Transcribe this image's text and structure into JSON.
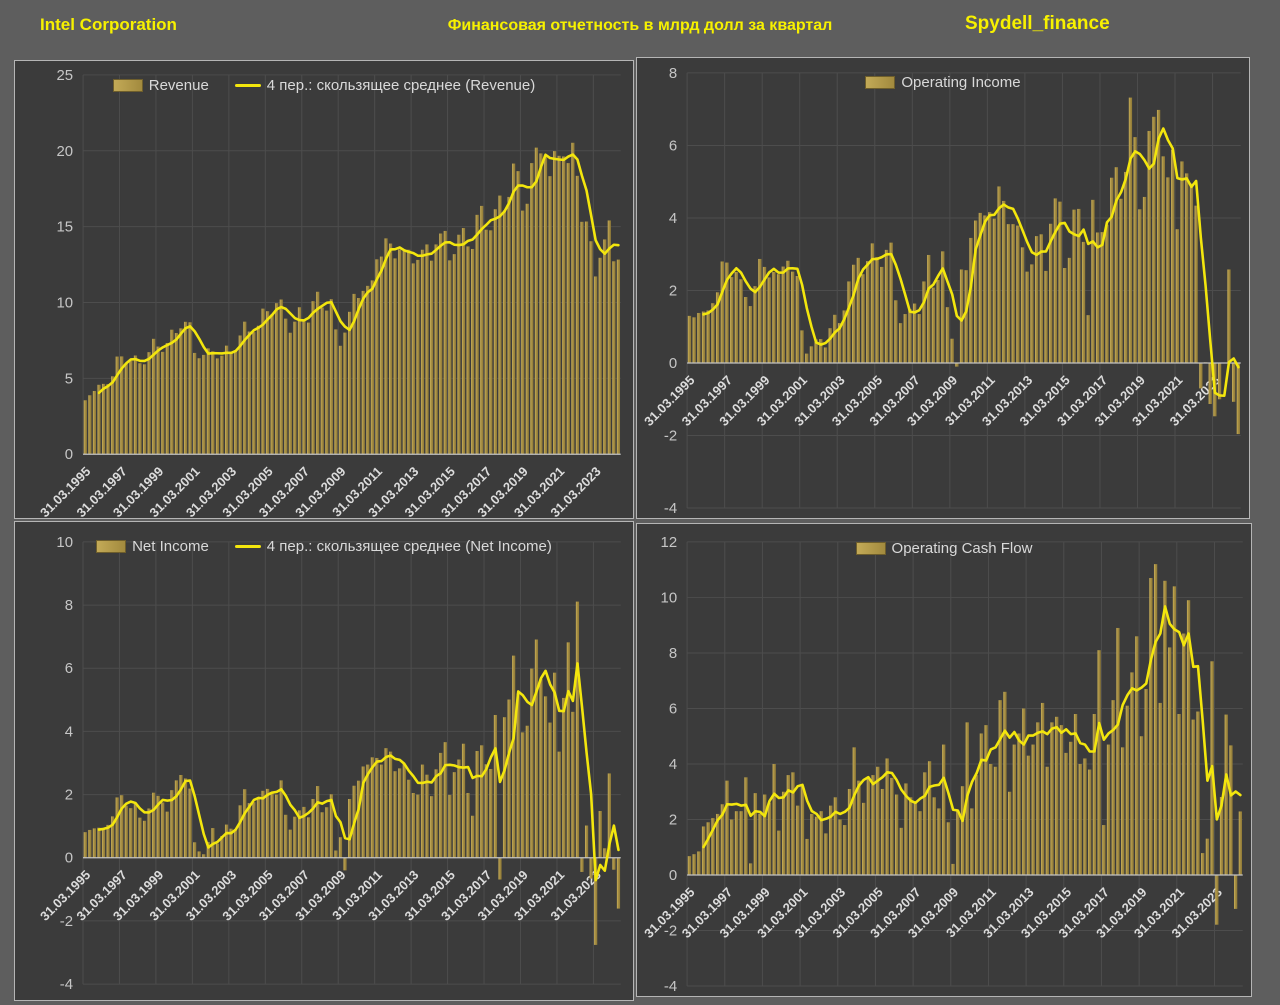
{
  "header": {
    "company": "Intel Corporation",
    "title": "Финансовая отчетность в млрд долл за квартал",
    "brand": "Spydell_finance"
  },
  "colors": {
    "page_bg": "#5e5e5e",
    "panel_bg": "#3b3b3b",
    "panel_border": "#b5b5b5",
    "grid": "#4d4d4d",
    "zero_axis": "#c4c4c4",
    "bar_fill": "#ab9245",
    "bar_highlight": "#cdb45c",
    "ma_line": "#f3e60d",
    "tick_text": "#c6c6c6",
    "xlabel_text": "#dcdcdc",
    "legend_text": "#d9d9d9",
    "header_text": "#f7f100"
  },
  "x_axis": {
    "tick_labels": [
      "31.03.1995",
      "31.03.1997",
      "31.03.1999",
      "31.03.2001",
      "31.03.2003",
      "31.03.2005",
      "31.03.2007",
      "31.03.2009",
      "31.03.2011",
      "31.03.2013",
      "31.03.2015",
      "31.03.2017",
      "31.03.2019",
      "31.03.2021",
      "31.03.2023"
    ],
    "tick_every": 8,
    "period": "quarterly",
    "first_quarter": "31.03.1995"
  },
  "chart_data": [
    {
      "type": "bar",
      "name": "revenue",
      "legend_bar": "Revenue",
      "legend_line": "4 пер.: скользящее среднее (Revenue)",
      "moving_average_period": 4,
      "ylim": [
        0,
        25
      ],
      "ytick_step": 5,
      "grid": true,
      "legend_position": "top-center",
      "values": [
        3.56,
        3.89,
        4.17,
        4.58,
        4.64,
        4.62,
        5.14,
        6.44,
        6.45,
        5.96,
        6.16,
        6.51,
        6.0,
        5.93,
        6.73,
        7.61,
        7.1,
        6.75,
        7.33,
        8.21,
        7.99,
        8.3,
        8.73,
        8.7,
        6.68,
        6.33,
        6.55,
        6.98,
        6.78,
        6.32,
        6.5,
        7.16,
        6.75,
        6.82,
        7.83,
        8.74,
        8.09,
        8.05,
        8.47,
        9.6,
        9.43,
        9.23,
        9.96,
        10.2,
        8.94,
        8.01,
        8.74,
        9.69,
        8.85,
        8.68,
        10.09,
        10.71,
        9.67,
        9.47,
        10.22,
        8.23,
        7.15,
        8.02,
        9.39,
        10.57,
        10.3,
        10.77,
        11.1,
        11.46,
        12.85,
        13.03,
        14.23,
        13.89,
        12.91,
        13.5,
        13.46,
        13.48,
        12.58,
        12.81,
        13.48,
        13.83,
        12.76,
        13.83,
        14.55,
        14.72,
        12.78,
        13.19,
        14.47,
        14.91,
        13.7,
        13.53,
        15.78,
        16.37,
        14.8,
        14.76,
        16.15,
        17.05,
        16.07,
        16.96,
        19.16,
        18.66,
        16.06,
        16.51,
        19.19,
        20.21,
        19.83,
        19.73,
        18.33,
        19.98,
        19.67,
        19.63,
        19.19,
        20.53,
        18.35,
        15.32,
        15.34,
        14.04,
        11.72,
        12.95,
        14.16,
        15.41,
        12.72,
        12.83
      ]
    },
    {
      "type": "bar",
      "name": "operating-income",
      "legend_bar": "Operating Income",
      "legend_line": null,
      "moving_average_period": 4,
      "ylim": [
        -4,
        8
      ],
      "ytick_step": 2,
      "grid": true,
      "legend_position": "top-center",
      "values": [
        1.3,
        1.26,
        1.38,
        1.42,
        1.45,
        1.65,
        1.95,
        2.8,
        2.77,
        2.37,
        2.51,
        2.31,
        1.82,
        1.57,
        2.12,
        2.87,
        2.65,
        2.36,
        2.51,
        2.45,
        2.66,
        2.82,
        2.52,
        2.4,
        0.9,
        0.26,
        0.46,
        0.65,
        0.66,
        0.43,
        0.96,
        1.33,
        1.1,
        1.45,
        2.25,
        2.71,
        2.9,
        2.45,
        2.81,
        3.3,
        2.92,
        2.65,
        3.12,
        3.32,
        1.73,
        1.1,
        1.35,
        1.49,
        1.64,
        1.35,
        2.25,
        2.98,
        2.08,
        2.29,
        3.08,
        1.54,
        0.67,
        -0.1,
        2.58,
        2.56,
        3.45,
        3.93,
        4.14,
        4.07,
        4.16,
        3.98,
        4.87,
        4.47,
        3.83,
        3.83,
        3.79,
        3.19,
        2.52,
        2.72,
        3.5,
        3.55,
        2.54,
        3.84,
        4.54,
        4.45,
        2.62,
        2.9,
        4.23,
        4.25,
        3.34,
        1.32,
        4.5,
        3.6,
        3.61,
        3.81,
        5.11,
        5.4,
        4.53,
        5.27,
        7.32,
        6.23,
        4.24,
        4.58,
        6.4,
        6.79,
        6.98,
        5.7,
        5.12,
        5.88,
        3.69,
        5.56,
        5.23,
        4.95,
        4.34,
        -0.7,
        0.02,
        -1.13,
        -1.47,
        -1.0,
        -0.01,
        2.58,
        -1.07,
        -1.96
      ]
    },
    {
      "type": "bar",
      "name": "net-income",
      "legend_bar": "Net Income",
      "legend_line": "4 пер.: скользящее среднее (Net Income)",
      "moving_average_period": 4,
      "ylim": [
        -4,
        10
      ],
      "ytick_step": 2,
      "grid": true,
      "legend_position": "top-center",
      "values": [
        0.81,
        0.88,
        0.93,
        0.95,
        0.89,
        1.04,
        1.31,
        1.91,
        1.98,
        1.65,
        1.57,
        1.74,
        1.27,
        1.17,
        1.56,
        2.06,
        1.96,
        1.75,
        1.46,
        2.14,
        2.45,
        2.62,
        2.51,
        2.19,
        0.49,
        0.2,
        0.11,
        0.5,
        0.94,
        0.45,
        0.69,
        1.05,
        0.92,
        0.9,
        1.66,
        2.17,
        1.73,
        1.76,
        1.91,
        2.12,
        2.18,
        2.04,
        2.0,
        2.45,
        1.36,
        0.89,
        1.3,
        1.5,
        1.61,
        1.28,
        1.86,
        2.27,
        1.44,
        1.6,
        2.01,
        0.23,
        0.65,
        -0.4,
        1.86,
        2.28,
        2.44,
        2.89,
        2.95,
        3.18,
        3.16,
        2.95,
        3.47,
        3.36,
        2.74,
        2.83,
        2.97,
        2.47,
        2.05,
        2.0,
        2.95,
        2.63,
        1.95,
        2.8,
        3.32,
        3.66,
        1.99,
        2.71,
        3.11,
        3.61,
        2.05,
        1.33,
        3.38,
        3.56,
        2.96,
        2.81,
        4.52,
        -0.69,
        4.45,
        5.01,
        6.4,
        5.2,
        3.97,
        4.18,
        5.99,
        6.91,
        5.66,
        5.11,
        4.28,
        5.86,
        3.36,
        5.06,
        6.82,
        4.62,
        8.11,
        -0.45,
        1.02,
        -0.66,
        -2.76,
        1.48,
        0.3,
        2.67,
        -0.38,
        -1.61
      ]
    },
    {
      "type": "bar",
      "name": "operating-cash-flow",
      "legend_bar": "Operating Cash Flow",
      "legend_line": null,
      "moving_average_period": 4,
      "ylim": [
        -4,
        12
      ],
      "ytick_step": 2,
      "grid": true,
      "legend_position": "top-center",
      "values": [
        0.68,
        0.75,
        0.85,
        1.75,
        1.9,
        2.05,
        2.2,
        2.55,
        3.4,
        2.0,
        2.3,
        2.3,
        3.52,
        0.42,
        2.95,
        2.21,
        2.9,
        2.6,
        4.0,
        1.6,
        3.0,
        3.6,
        3.7,
        2.5,
        3.2,
        1.3,
        2.2,
        2.1,
        2.3,
        1.5,
        2.5,
        2.8,
        2.0,
        1.8,
        3.1,
        4.6,
        3.4,
        2.6,
        3.5,
        3.6,
        3.9,
        3.1,
        4.2,
        3.5,
        2.9,
        1.7,
        3.3,
        2.8,
        2.6,
        2.3,
        3.7,
        4.1,
        2.8,
        2.4,
        4.7,
        1.9,
        0.4,
        2.3,
        3.2,
        5.5,
        2.4,
        3.6,
        5.1,
        5.4,
        4.0,
        3.9,
        6.3,
        6.6,
        3.0,
        4.7,
        5.1,
        6.0,
        4.3,
        4.7,
        5.5,
        6.2,
        3.9,
        5.5,
        5.7,
        5.4,
        4.4,
        4.8,
        5.8,
        4.0,
        4.2,
        3.8,
        5.8,
        8.1,
        1.8,
        4.7,
        6.3,
        8.9,
        4.6,
        6.1,
        7.3,
        8.6,
        5.0,
        6.7,
        10.7,
        11.2,
        6.2,
        10.6,
        8.2,
        10.4,
        5.8,
        8.7,
        9.9,
        5.6,
        5.89,
        0.79,
        1.31,
        7.7,
        -1.79,
        2.81,
        5.78,
        4.67,
        -1.22,
        2.29
      ]
    }
  ]
}
